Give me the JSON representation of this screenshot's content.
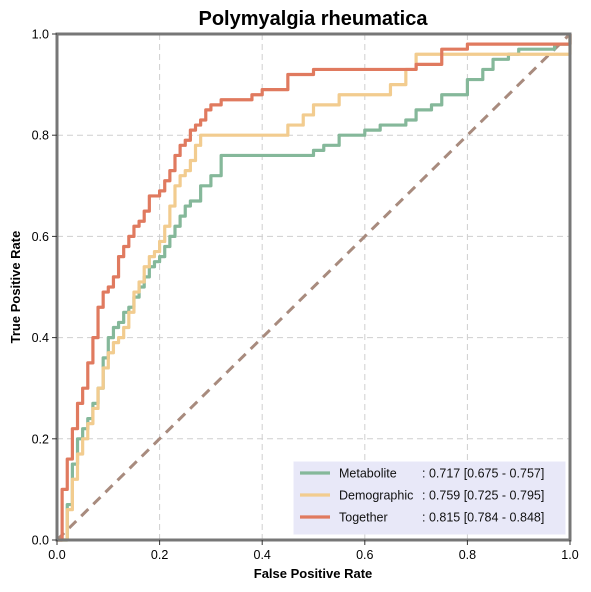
{
  "chart_data": {
    "type": "line",
    "title": "Polymyalgia rheumatica",
    "xlabel": "False Positive Rate",
    "ylabel": "True Positive Rate",
    "xlim": [
      0,
      1
    ],
    "ylim": [
      0,
      1
    ],
    "xticks": [
      "0.0",
      "0.2",
      "0.4",
      "0.6",
      "0.8",
      "1.0"
    ],
    "yticks": [
      "0.0",
      "0.2",
      "0.4",
      "0.6",
      "0.8",
      "1.0"
    ],
    "grid": true,
    "legend_position": "bottom-right",
    "reference_line": {
      "x": [
        0,
        1
      ],
      "y": [
        0,
        1
      ],
      "color": "#a88b7e",
      "style": "dashed"
    },
    "series": [
      {
        "name": "Metabolite",
        "label_name": "Metabolite",
        "label_stats": ": 0.717 [0.675 - 0.757]",
        "color": "#85b89a",
        "x": [
          0,
          0.02,
          0.03,
          0.04,
          0.05,
          0.06,
          0.07,
          0.08,
          0.09,
          0.1,
          0.11,
          0.12,
          0.13,
          0.14,
          0.15,
          0.16,
          0.17,
          0.18,
          0.19,
          0.2,
          0.21,
          0.22,
          0.23,
          0.24,
          0.25,
          0.26,
          0.28,
          0.3,
          0.32,
          0.35,
          0.38,
          0.4,
          0.45,
          0.48,
          0.5,
          0.52,
          0.55,
          0.6,
          0.63,
          0.65,
          0.68,
          0.7,
          0.73,
          0.75,
          0.78,
          0.8,
          0.83,
          0.85,
          0.88,
          0.9,
          0.95,
          0.97,
          1.0
        ],
        "y": [
          0,
          0.07,
          0.15,
          0.2,
          0.22,
          0.24,
          0.27,
          0.3,
          0.36,
          0.4,
          0.42,
          0.43,
          0.45,
          0.46,
          0.48,
          0.5,
          0.52,
          0.54,
          0.55,
          0.56,
          0.58,
          0.6,
          0.62,
          0.64,
          0.66,
          0.67,
          0.7,
          0.72,
          0.76,
          0.76,
          0.76,
          0.76,
          0.76,
          0.76,
          0.77,
          0.78,
          0.8,
          0.81,
          0.82,
          0.82,
          0.83,
          0.85,
          0.86,
          0.88,
          0.88,
          0.91,
          0.93,
          0.95,
          0.96,
          0.97,
          0.97,
          0.98,
          1.0
        ]
      },
      {
        "name": "Demographic",
        "label_name": "Demographic",
        "label_stats": ": 0.759 [0.725 - 0.795]",
        "color": "#f2cc8f",
        "x": [
          0,
          0.02,
          0.03,
          0.04,
          0.05,
          0.06,
          0.07,
          0.08,
          0.09,
          0.1,
          0.11,
          0.12,
          0.13,
          0.14,
          0.15,
          0.16,
          0.17,
          0.18,
          0.19,
          0.2,
          0.21,
          0.22,
          0.23,
          0.24,
          0.25,
          0.26,
          0.27,
          0.28,
          0.29,
          0.3,
          0.32,
          0.35,
          0.38,
          0.4,
          0.45,
          0.48,
          0.5,
          0.55,
          0.6,
          0.63,
          0.65,
          0.68,
          0.7,
          0.75,
          0.8,
          0.85,
          0.9,
          0.95,
          1.0
        ],
        "y": [
          0,
          0.06,
          0.12,
          0.17,
          0.2,
          0.23,
          0.26,
          0.3,
          0.34,
          0.37,
          0.39,
          0.4,
          0.42,
          0.45,
          0.49,
          0.51,
          0.54,
          0.56,
          0.57,
          0.59,
          0.62,
          0.66,
          0.7,
          0.72,
          0.73,
          0.75,
          0.78,
          0.8,
          0.8,
          0.8,
          0.8,
          0.8,
          0.8,
          0.8,
          0.82,
          0.84,
          0.86,
          0.88,
          0.88,
          0.88,
          0.9,
          0.93,
          0.96,
          0.96,
          0.96,
          0.96,
          0.96,
          0.96,
          1.0
        ]
      },
      {
        "name": "Together",
        "label_name": "Together",
        "label_stats": ": 0.815 [0.784 - 0.848]",
        "color": "#e07a5f",
        "x": [
          0,
          0.01,
          0.02,
          0.03,
          0.04,
          0.05,
          0.06,
          0.07,
          0.08,
          0.09,
          0.1,
          0.11,
          0.12,
          0.13,
          0.14,
          0.15,
          0.16,
          0.17,
          0.18,
          0.19,
          0.2,
          0.21,
          0.22,
          0.23,
          0.24,
          0.25,
          0.26,
          0.27,
          0.28,
          0.29,
          0.3,
          0.32,
          0.35,
          0.38,
          0.4,
          0.45,
          0.5,
          0.55,
          0.6,
          0.65,
          0.7,
          0.75,
          0.8,
          0.85,
          0.9,
          0.95,
          1.0
        ],
        "y": [
          0,
          0.1,
          0.16,
          0.22,
          0.27,
          0.3,
          0.35,
          0.4,
          0.46,
          0.49,
          0.5,
          0.52,
          0.56,
          0.58,
          0.6,
          0.62,
          0.63,
          0.65,
          0.68,
          0.68,
          0.69,
          0.71,
          0.73,
          0.76,
          0.78,
          0.79,
          0.81,
          0.82,
          0.83,
          0.85,
          0.86,
          0.87,
          0.87,
          0.88,
          0.89,
          0.92,
          0.93,
          0.93,
          0.93,
          0.93,
          0.94,
          0.97,
          0.98,
          0.98,
          0.98,
          0.98,
          1.0
        ]
      }
    ]
  }
}
